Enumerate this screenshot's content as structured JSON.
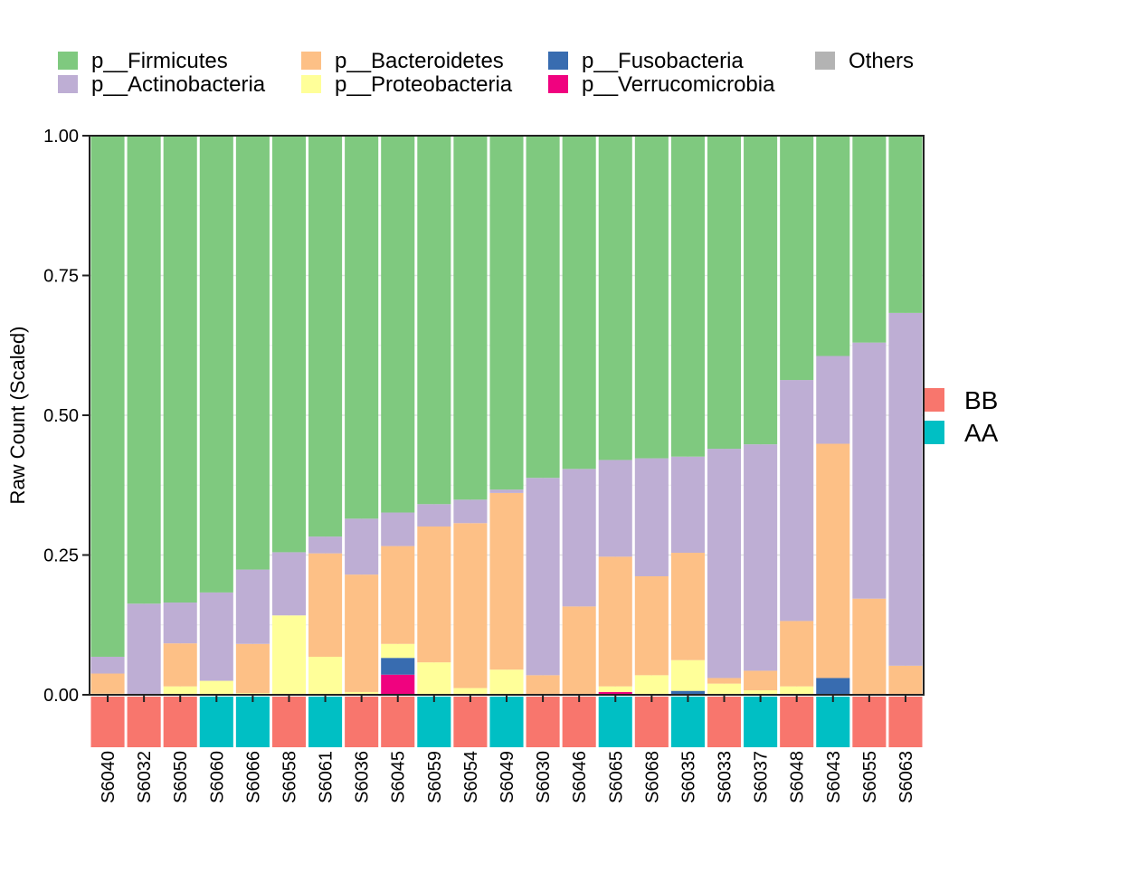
{
  "chart_data": {
    "type": "bar",
    "stacked": true,
    "ylabel": "Raw Count (Scaled)",
    "xlabel": "",
    "ylim": [
      0,
      1
    ],
    "yticks": [
      0,
      0.25,
      0.5,
      0.75,
      1
    ],
    "ytick_labels": [
      "0.00",
      "0.25",
      "0.50",
      "0.75",
      "1.00"
    ],
    "grid": true,
    "legend_position": "top",
    "categories": [
      "S6040",
      "S6032",
      "S6050",
      "S6060",
      "S6066",
      "S6058",
      "S6061",
      "S6036",
      "S6045",
      "S6059",
      "S6054",
      "S6049",
      "S6030",
      "S6046",
      "S6065",
      "S6068",
      "S6035",
      "S6033",
      "S6037",
      "S6048",
      "S6043",
      "S6055",
      "S6063"
    ],
    "series": [
      {
        "name": "Others",
        "color": "#b3b3b3",
        "values": [
          0,
          0,
          0,
          0,
          0,
          0,
          0,
          0,
          0,
          0,
          0,
          0,
          0,
          0,
          0,
          0,
          0,
          0,
          0,
          0,
          0,
          0,
          0
        ]
      },
      {
        "name": "p__Verrucomicrobia",
        "color": "#f0027f",
        "values": [
          0,
          0,
          0,
          0,
          0,
          0,
          0,
          0,
          0.036,
          0,
          0,
          0,
          0,
          0,
          0.005,
          0,
          0,
          0,
          0,
          0,
          0,
          0,
          0
        ]
      },
      {
        "name": "p__Fusobacteria",
        "color": "#386cb0",
        "values": [
          0,
          0,
          0,
          0,
          0,
          0,
          0,
          0,
          0.03,
          0,
          0,
          0,
          0,
          0,
          0,
          0,
          0.007,
          0,
          0,
          0,
          0.03,
          0,
          0
        ]
      },
      {
        "name": "p__Proteobacteria",
        "color": "#ffff99",
        "values": [
          0.002,
          0,
          0.015,
          0.025,
          0.003,
          0.142,
          0.068,
          0.005,
          0.025,
          0.058,
          0.012,
          0.045,
          0,
          0,
          0.01,
          0.035,
          0.055,
          0.02,
          0.008,
          0.015,
          0,
          0,
          0
        ]
      },
      {
        "name": "p__Bacteroidetes",
        "color": "#fdc086",
        "values": [
          0.036,
          0,
          0.077,
          0,
          0.088,
          0,
          0.185,
          0.21,
          0.175,
          0.243,
          0.295,
          0.316,
          0.035,
          0.158,
          0.232,
          0.177,
          0.192,
          0.01,
          0.035,
          0.117,
          0.419,
          0.172,
          0.052
        ]
      },
      {
        "name": "p__Actinobacteria",
        "color": "#beaed4",
        "values": [
          0.03,
          0.163,
          0.073,
          0.158,
          0.133,
          0.113,
          0.03,
          0.1,
          0.06,
          0.04,
          0.042,
          0.006,
          0.353,
          0.246,
          0.173,
          0.211,
          0.172,
          0.41,
          0.405,
          0.431,
          0.157,
          0.458,
          0.631
        ]
      },
      {
        "name": "p__Firmicutes",
        "color": "#7fc97f",
        "values": [
          0.932,
          0.837,
          0.835,
          0.817,
          0.776,
          0.745,
          0.717,
          0.685,
          0.674,
          0.659,
          0.651,
          0.633,
          0.612,
          0.596,
          0.58,
          0.577,
          0.574,
          0.56,
          0.552,
          0.437,
          0.394,
          0.37,
          0.317
        ]
      }
    ],
    "group_labels": [
      "BB",
      "BB",
      "BB",
      "AA",
      "AA",
      "BB",
      "AA",
      "BB",
      "BB",
      "AA",
      "BB",
      "AA",
      "BB",
      "BB",
      "AA",
      "BB",
      "AA",
      "BB",
      "AA",
      "BB",
      "AA",
      "BB",
      "BB"
    ],
    "group_legend": [
      {
        "name": "BB",
        "color": "#f8766d"
      },
      {
        "name": "AA",
        "color": "#00bfc4"
      }
    ],
    "legend_entries": [
      {
        "name": "p__Firmicutes",
        "color": "#7fc97f"
      },
      {
        "name": "p__Actinobacteria",
        "color": "#beaed4"
      },
      {
        "name": "p__Bacteroidetes",
        "color": "#fdc086"
      },
      {
        "name": "p__Proteobacteria",
        "color": "#ffff99"
      },
      {
        "name": "p__Fusobacteria",
        "color": "#386cb0"
      },
      {
        "name": "p__Verrucomicrobia",
        "color": "#f0027f"
      },
      {
        "name": "Others",
        "color": "#b3b3b3"
      }
    ]
  }
}
